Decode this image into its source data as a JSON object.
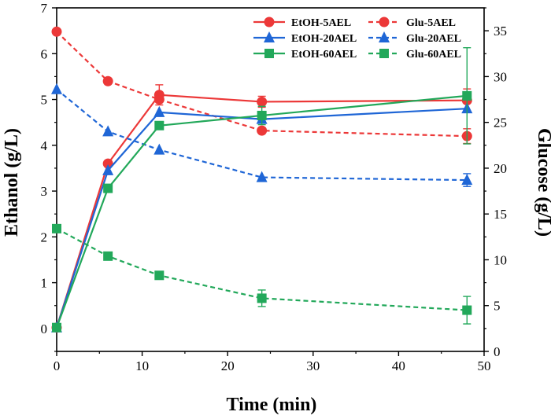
{
  "chart_data": {
    "type": "line",
    "xlabel": "Time (min)",
    "ylabel_left": "Ethanol (g/L)",
    "ylabel_right": "Glucose (g/L)",
    "xlim": [
      0,
      50
    ],
    "ylim_left": [
      -0.5,
      7
    ],
    "ylim_right": [
      0,
      37.5
    ],
    "xticks": [
      "0",
      "10",
      "20",
      "30",
      "40",
      "50"
    ],
    "yticks_left": [
      "0",
      "1",
      "2",
      "3",
      "4",
      "5",
      "6",
      "7"
    ],
    "yticks_right": [
      "0",
      "5",
      "10",
      "15",
      "20",
      "25",
      "30",
      "35"
    ],
    "grid": false,
    "legend_placement": "top-right",
    "series": [
      {
        "name": "EtOH-5AEL",
        "axis": "left",
        "style": "solid",
        "marker": "circle",
        "color": "#ec3838",
        "x": [
          0,
          6,
          12,
          24,
          48
        ],
        "y": [
          0.02,
          3.6,
          5.1,
          4.95,
          4.98
        ],
        "err": [
          0,
          0,
          0.22,
          0.12,
          0.25
        ]
      },
      {
        "name": "Glu-5AEL",
        "axis": "right",
        "style": "dashed",
        "marker": "circle",
        "color": "#ec3838",
        "x": [
          0,
          6,
          12,
          24,
          48
        ],
        "y": [
          34.9,
          29.5,
          27.5,
          24.1,
          23.5
        ],
        "err": [
          0,
          0,
          0,
          0,
          0.8
        ]
      },
      {
        "name": "EtOH-20AEL",
        "axis": "left",
        "style": "solid",
        "marker": "triangle",
        "color": "#1f66d6",
        "x": [
          0,
          6,
          12,
          24,
          48
        ],
        "y": [
          0.02,
          3.45,
          4.72,
          4.57,
          4.8
        ],
        "err": [
          0,
          0,
          0,
          0,
          0
        ]
      },
      {
        "name": "Glu-20AEL",
        "axis": "right",
        "style": "dashed",
        "marker": "triangle",
        "color": "#1f66d6",
        "x": [
          0,
          6,
          12,
          24,
          48
        ],
        "y": [
          28.6,
          24,
          22,
          19,
          18.7
        ],
        "err": [
          0,
          0,
          0,
          0,
          0.7
        ]
      },
      {
        "name": "EtOH-60AEL",
        "axis": "left",
        "style": "solid",
        "marker": "square",
        "color": "#22a85a",
        "x": [
          0,
          6,
          12,
          24,
          48
        ],
        "y": [
          0.02,
          3.06,
          4.43,
          4.65,
          5.08
        ],
        "err": [
          0,
          0,
          0,
          0.2,
          1.05
        ]
      },
      {
        "name": "Glu-60AEL",
        "axis": "right",
        "style": "dashed",
        "marker": "square",
        "color": "#22a85a",
        "x": [
          0,
          6,
          12,
          24,
          48
        ],
        "y": [
          13.4,
          10.4,
          8.3,
          5.8,
          4.5
        ],
        "err": [
          0,
          0,
          0,
          0.9,
          1.5
        ]
      }
    ]
  }
}
